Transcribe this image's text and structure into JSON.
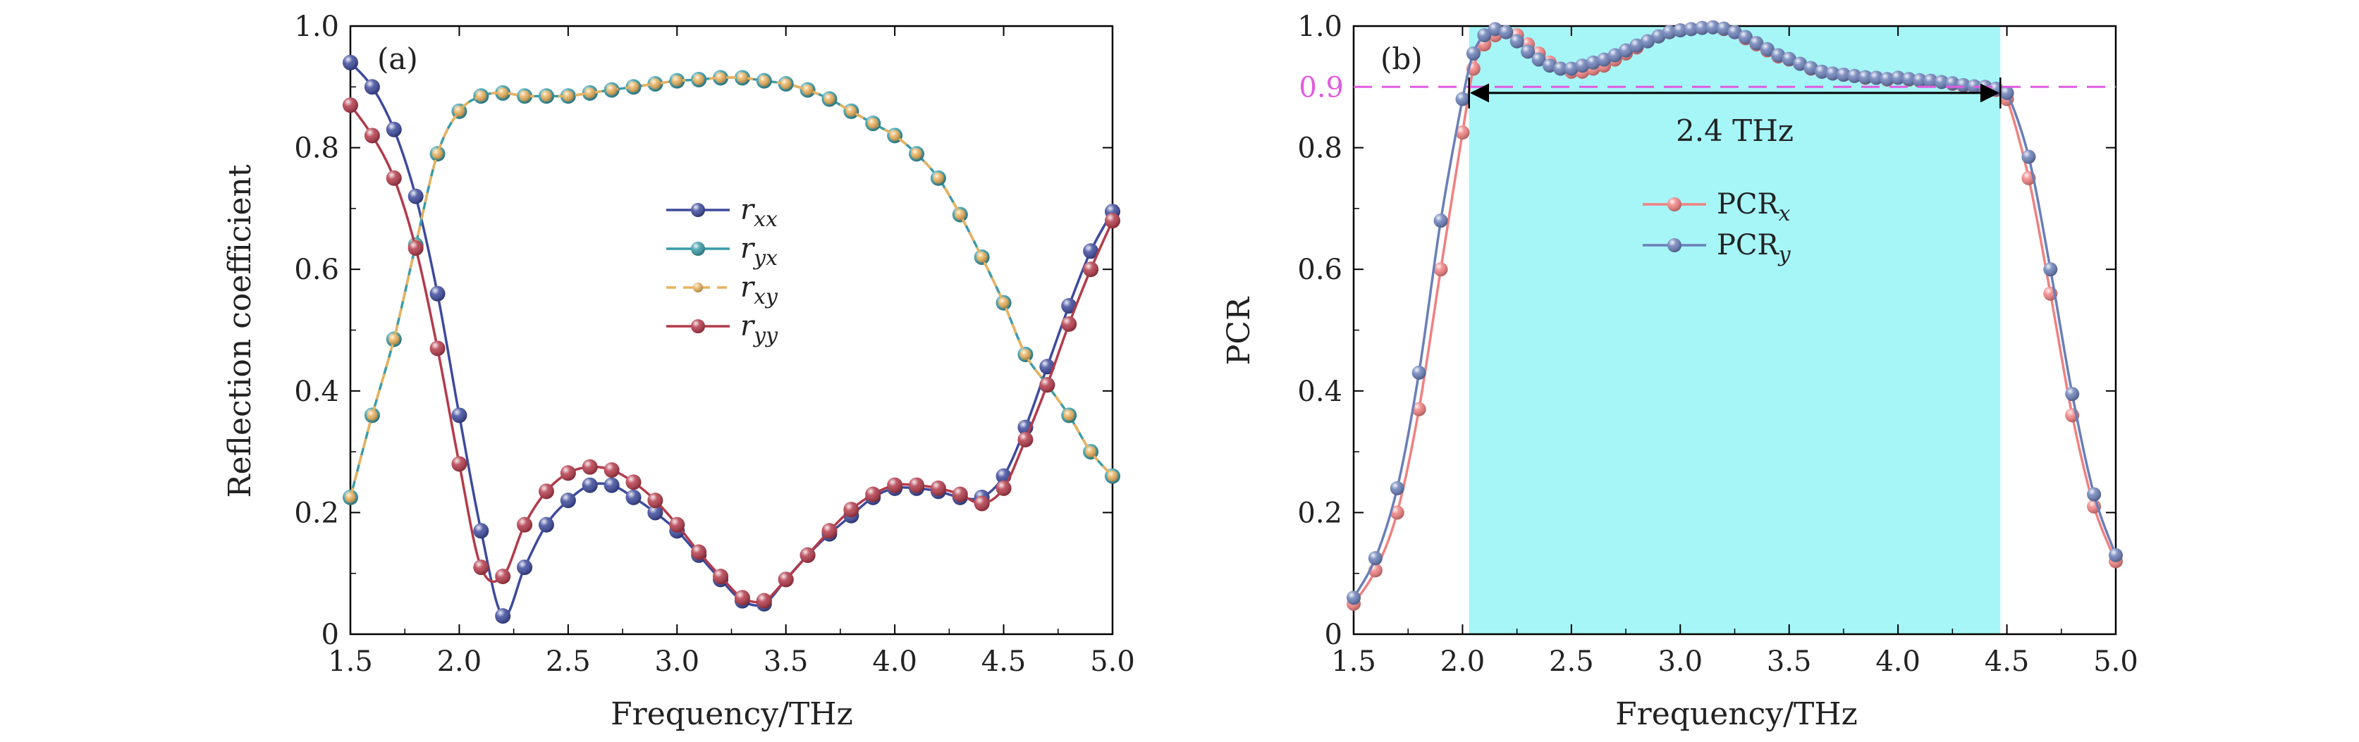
{
  "figure": {
    "panels": [
      "(a)",
      "(b)"
    ]
  },
  "chart_data": [
    {
      "type": "line",
      "panel_label": "(a)",
      "title": "",
      "xlabel": "Frequency/THz",
      "ylabel": "Reflection coefficient",
      "xlim": [
        1.5,
        5.0
      ],
      "ylim": [
        0,
        1.0
      ],
      "xticks": [
        "1.5",
        "2.0",
        "2.5",
        "3.0",
        "3.5",
        "4.0",
        "4.5",
        "5.0"
      ],
      "yticks": [
        "0",
        "0.2",
        "0.4",
        "0.6",
        "0.8",
        "1.0"
      ],
      "legend_position": "center",
      "series": [
        {
          "name": "r_xx",
          "label_main": "r",
          "label_sub": "xx",
          "color": "#3d4a9c",
          "dashed": false,
          "x": [
            1.5,
            1.6,
            1.7,
            1.8,
            1.9,
            2.0,
            2.1,
            2.2,
            2.3,
            2.4,
            2.5,
            2.6,
            2.7,
            2.8,
            2.9,
            3.0,
            3.1,
            3.2,
            3.3,
            3.4,
            3.5,
            3.6,
            3.7,
            3.8,
            3.9,
            4.0,
            4.1,
            4.2,
            4.3,
            4.4,
            4.5,
            4.6,
            4.7,
            4.8,
            4.9,
            5.0
          ],
          "y": [
            0.94,
            0.9,
            0.83,
            0.72,
            0.56,
            0.36,
            0.17,
            0.03,
            0.11,
            0.18,
            0.22,
            0.245,
            0.245,
            0.225,
            0.2,
            0.17,
            0.13,
            0.09,
            0.055,
            0.05,
            0.09,
            0.13,
            0.165,
            0.195,
            0.225,
            0.24,
            0.24,
            0.235,
            0.225,
            0.225,
            0.26,
            0.34,
            0.44,
            0.54,
            0.63,
            0.695
          ]
        },
        {
          "name": "r_yx",
          "label_main": "r",
          "label_sub": "yx",
          "color": "#3a9ca8",
          "dashed": false,
          "x": [
            1.5,
            1.6,
            1.7,
            1.8,
            1.9,
            2.0,
            2.1,
            2.2,
            2.3,
            2.4,
            2.5,
            2.6,
            2.7,
            2.8,
            2.9,
            3.0,
            3.1,
            3.2,
            3.3,
            3.4,
            3.5,
            3.6,
            3.7,
            3.8,
            3.9,
            4.0,
            4.1,
            4.2,
            4.3,
            4.4,
            4.5,
            4.6,
            4.7,
            4.8,
            4.9,
            5.0
          ],
          "y": [
            0.225,
            0.36,
            0.485,
            0.64,
            0.79,
            0.86,
            0.885,
            0.89,
            0.885,
            0.885,
            0.885,
            0.89,
            0.895,
            0.9,
            0.905,
            0.91,
            0.912,
            0.915,
            0.915,
            0.91,
            0.905,
            0.895,
            0.88,
            0.86,
            0.84,
            0.82,
            0.79,
            0.75,
            0.69,
            0.62,
            0.545,
            0.46,
            0.41,
            0.36,
            0.3,
            0.26
          ]
        },
        {
          "name": "r_xy",
          "label_main": "r",
          "label_sub": "xy",
          "color": "#e8b25e",
          "dashed": true,
          "x": [
            1.5,
            1.6,
            1.7,
            1.8,
            1.9,
            2.0,
            2.1,
            2.2,
            2.3,
            2.4,
            2.5,
            2.6,
            2.7,
            2.8,
            2.9,
            3.0,
            3.1,
            3.2,
            3.3,
            3.4,
            3.5,
            3.6,
            3.7,
            3.8,
            3.9,
            4.0,
            4.1,
            4.2,
            4.3,
            4.4,
            4.5,
            4.6,
            4.7,
            4.8,
            4.9,
            5.0
          ],
          "y": [
            0.225,
            0.36,
            0.485,
            0.64,
            0.79,
            0.86,
            0.885,
            0.89,
            0.885,
            0.885,
            0.885,
            0.89,
            0.895,
            0.9,
            0.905,
            0.91,
            0.912,
            0.915,
            0.915,
            0.91,
            0.905,
            0.895,
            0.88,
            0.86,
            0.84,
            0.82,
            0.79,
            0.75,
            0.69,
            0.62,
            0.545,
            0.46,
            0.41,
            0.36,
            0.3,
            0.26
          ]
        },
        {
          "name": "r_yy",
          "label_main": "r",
          "label_sub": "yy",
          "color": "#b33a4a",
          "dashed": false,
          "x": [
            1.5,
            1.6,
            1.7,
            1.8,
            1.9,
            2.0,
            2.1,
            2.2,
            2.3,
            2.4,
            2.5,
            2.6,
            2.7,
            2.8,
            2.9,
            3.0,
            3.1,
            3.2,
            3.3,
            3.4,
            3.5,
            3.6,
            3.7,
            3.8,
            3.9,
            4.0,
            4.1,
            4.2,
            4.3,
            4.4,
            4.5,
            4.6,
            4.7,
            4.8,
            4.9,
            5.0
          ],
          "y": [
            0.87,
            0.82,
            0.75,
            0.635,
            0.47,
            0.28,
            0.11,
            0.095,
            0.18,
            0.235,
            0.265,
            0.275,
            0.27,
            0.25,
            0.22,
            0.18,
            0.135,
            0.095,
            0.06,
            0.055,
            0.09,
            0.13,
            0.17,
            0.205,
            0.23,
            0.245,
            0.245,
            0.24,
            0.23,
            0.215,
            0.24,
            0.32,
            0.41,
            0.51,
            0.6,
            0.68
          ]
        }
      ]
    },
    {
      "type": "line",
      "panel_label": "(b)",
      "title": "",
      "xlabel": "Frequency/THz",
      "ylabel": "PCR",
      "xlim": [
        1.5,
        5.0
      ],
      "ylim": [
        0,
        1.0
      ],
      "xticks": [
        "1.5",
        "2.0",
        "2.5",
        "3.0",
        "3.5",
        "4.0",
        "4.5",
        "5.0"
      ],
      "yticks": [
        "0",
        "0.2",
        "0.4",
        "0.6",
        "0.8",
        "1.0"
      ],
      "legend_position": "center-left",
      "highlight_band": {
        "x_start": 2.03,
        "x_end": 4.47,
        "color": "#a6f6f8"
      },
      "threshold_line": {
        "y": 0.9,
        "label": "0.9",
        "color": "#e05ce0"
      },
      "bandwidth_annotation": {
        "x_start": 2.03,
        "x_end": 4.47,
        "y": 0.89,
        "label": "2.4 THz"
      },
      "series": [
        {
          "name": "PCR_x",
          "label_main": "PCR",
          "label_sub": "x",
          "color": "#f08080",
          "dashed": false,
          "x": [
            1.5,
            1.6,
            1.7,
            1.8,
            1.9,
            2.0,
            2.05,
            2.1,
            2.15,
            2.2,
            2.25,
            2.3,
            2.35,
            2.4,
            2.45,
            2.5,
            2.55,
            2.6,
            2.65,
            2.7,
            2.75,
            2.8,
            2.85,
            2.9,
            2.95,
            3.0,
            3.05,
            3.1,
            3.15,
            3.2,
            3.25,
            3.3,
            3.35,
            3.4,
            3.45,
            3.5,
            3.55,
            3.6,
            3.65,
            3.7,
            3.75,
            3.8,
            3.85,
            3.9,
            3.95,
            4.0,
            4.05,
            4.1,
            4.15,
            4.2,
            4.25,
            4.3,
            4.35,
            4.4,
            4.45,
            4.5,
            4.6,
            4.7,
            4.8,
            4.9,
            5.0
          ],
          "y": [
            0.05,
            0.105,
            0.2,
            0.37,
            0.6,
            0.825,
            0.93,
            0.97,
            0.985,
            0.99,
            0.985,
            0.97,
            0.955,
            0.94,
            0.93,
            0.925,
            0.925,
            0.93,
            0.935,
            0.945,
            0.955,
            0.965,
            0.975,
            0.983,
            0.99,
            0.993,
            0.995,
            0.997,
            0.998,
            0.995,
            0.99,
            0.98,
            0.97,
            0.96,
            0.95,
            0.945,
            0.938,
            0.93,
            0.925,
            0.922,
            0.92,
            0.918,
            0.915,
            0.915,
            0.912,
            0.915,
            0.912,
            0.91,
            0.91,
            0.908,
            0.905,
            0.902,
            0.9,
            0.9,
            0.895,
            0.88,
            0.75,
            0.56,
            0.36,
            0.21,
            0.12
          ]
        },
        {
          "name": "PCR_y",
          "label_main": "PCR",
          "label_sub": "y",
          "color": "#6a7fb8",
          "dashed": false,
          "x": [
            1.5,
            1.6,
            1.7,
            1.8,
            1.9,
            2.0,
            2.05,
            2.1,
            2.15,
            2.2,
            2.25,
            2.3,
            2.35,
            2.4,
            2.45,
            2.5,
            2.55,
            2.6,
            2.65,
            2.7,
            2.75,
            2.8,
            2.85,
            2.9,
            2.95,
            3.0,
            3.05,
            3.1,
            3.15,
            3.2,
            3.25,
            3.3,
            3.35,
            3.4,
            3.45,
            3.5,
            3.55,
            3.6,
            3.65,
            3.7,
            3.75,
            3.8,
            3.85,
            3.9,
            3.95,
            4.0,
            4.05,
            4.1,
            4.15,
            4.2,
            4.25,
            4.3,
            4.35,
            4.4,
            4.45,
            4.5,
            4.6,
            4.7,
            4.8,
            4.9,
            5.0
          ],
          "y": [
            0.06,
            0.125,
            0.24,
            0.43,
            0.68,
            0.88,
            0.955,
            0.985,
            0.995,
            0.99,
            0.975,
            0.958,
            0.945,
            0.935,
            0.93,
            0.93,
            0.935,
            0.94,
            0.945,
            0.952,
            0.96,
            0.968,
            0.975,
            0.983,
            0.99,
            0.993,
            0.995,
            0.997,
            0.998,
            0.996,
            0.99,
            0.982,
            0.972,
            0.962,
            0.952,
            0.946,
            0.938,
            0.931,
            0.925,
            0.922,
            0.92,
            0.918,
            0.916,
            0.915,
            0.913,
            0.915,
            0.913,
            0.911,
            0.91,
            0.908,
            0.906,
            0.903,
            0.901,
            0.9,
            0.897,
            0.89,
            0.785,
            0.6,
            0.395,
            0.23,
            0.13
          ]
        }
      ]
    }
  ]
}
